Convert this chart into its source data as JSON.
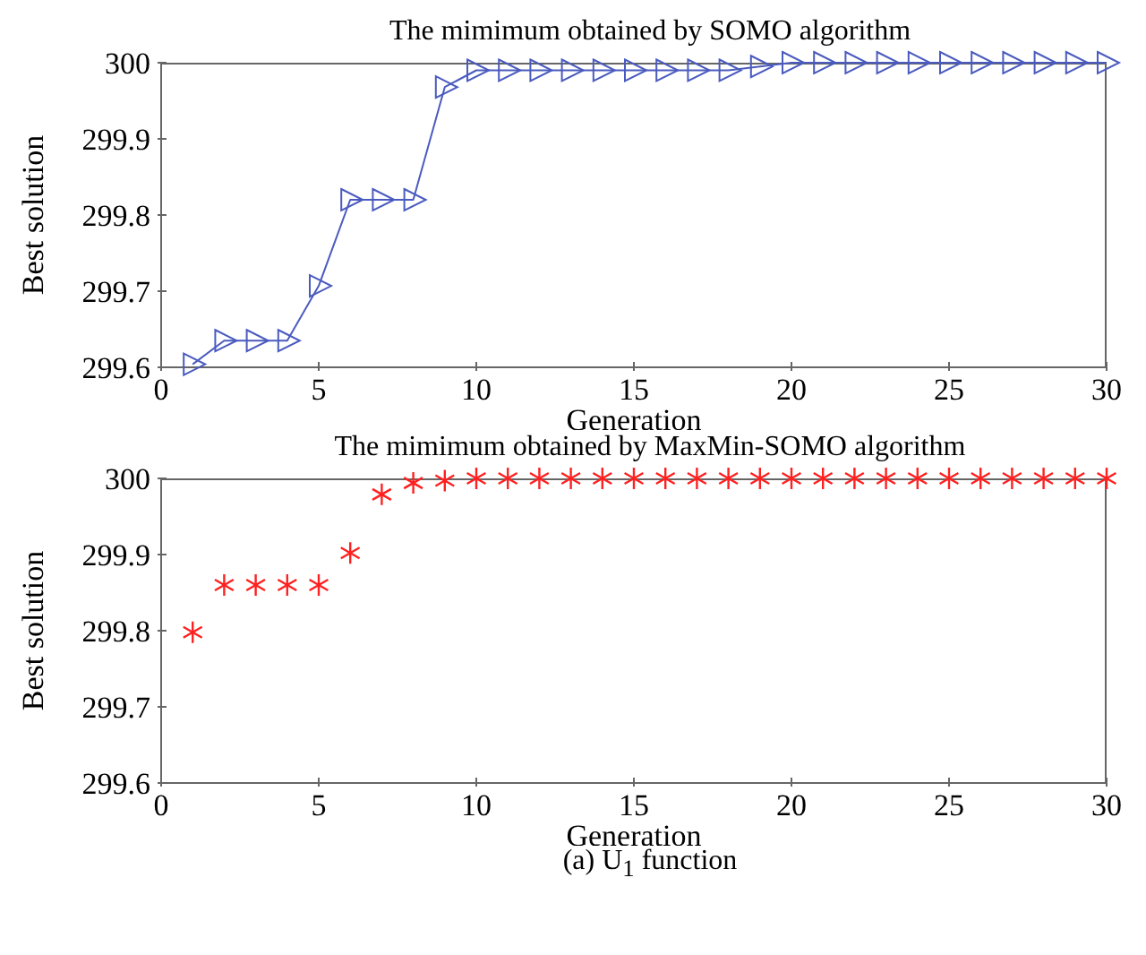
{
  "chart_data": [
    {
      "type": "line",
      "title": "The mimimum obtained by SOMO algorithm",
      "xlabel": "Generation",
      "ylabel": "Best solution",
      "marker": "triangle",
      "x": [
        1,
        2,
        3,
        4,
        5,
        6,
        7,
        8,
        9,
        10,
        11,
        12,
        13,
        14,
        15,
        16,
        17,
        18,
        19,
        20,
        21,
        22,
        23,
        24,
        25,
        26,
        27,
        28,
        29,
        30
      ],
      "series": [
        {
          "color": "#4a5bbf",
          "values": [
            299.604,
            299.635,
            299.635,
            299.635,
            299.707,
            299.82,
            299.82,
            299.82,
            299.968,
            299.99,
            299.99,
            299.99,
            299.99,
            299.99,
            299.99,
            299.99,
            299.99,
            299.99,
            299.995,
            300,
            300,
            300,
            300,
            300,
            300,
            300,
            300,
            300,
            300,
            300
          ]
        }
      ],
      "xlim": [
        0,
        30
      ],
      "xticks": [
        0,
        5,
        10,
        15,
        20,
        25,
        30
      ],
      "ylim": [
        299.6,
        300
      ],
      "yticks": [
        299.6,
        299.7,
        299.8,
        299.9,
        300
      ]
    },
    {
      "type": "scatter",
      "title": "The mimimum obtained by MaxMin-SOMO algorithm",
      "xlabel": "Generation",
      "ylabel": "Best solution",
      "marker": "cross",
      "annotations": [
        "(a) U$_{1}$ function"
      ],
      "x": [
        1,
        2,
        3,
        4,
        5,
        6,
        7,
        8,
        9,
        10,
        11,
        12,
        13,
        14,
        15,
        16,
        17,
        18,
        19,
        20,
        21,
        22,
        23,
        24,
        25,
        26,
        27,
        28,
        29,
        30
      ],
      "series": [
        {
          "color": "#ff2020",
          "values": [
            299.798,
            299.86,
            299.86,
            299.86,
            299.86,
            299.902,
            299.979,
            299.994,
            299.997,
            300,
            300,
            300,
            300,
            300,
            300,
            300,
            300,
            300,
            300,
            300,
            300,
            300,
            300,
            300,
            300,
            300,
            300,
            300,
            300,
            300
          ]
        }
      ],
      "xlim": [
        0,
        30
      ],
      "xticks": [
        0,
        5,
        10,
        15,
        20,
        25,
        30
      ],
      "ylim": [
        299.6,
        300
      ],
      "yticks": [
        299.6,
        299.7,
        299.8,
        299.9,
        300
      ]
    }
  ]
}
